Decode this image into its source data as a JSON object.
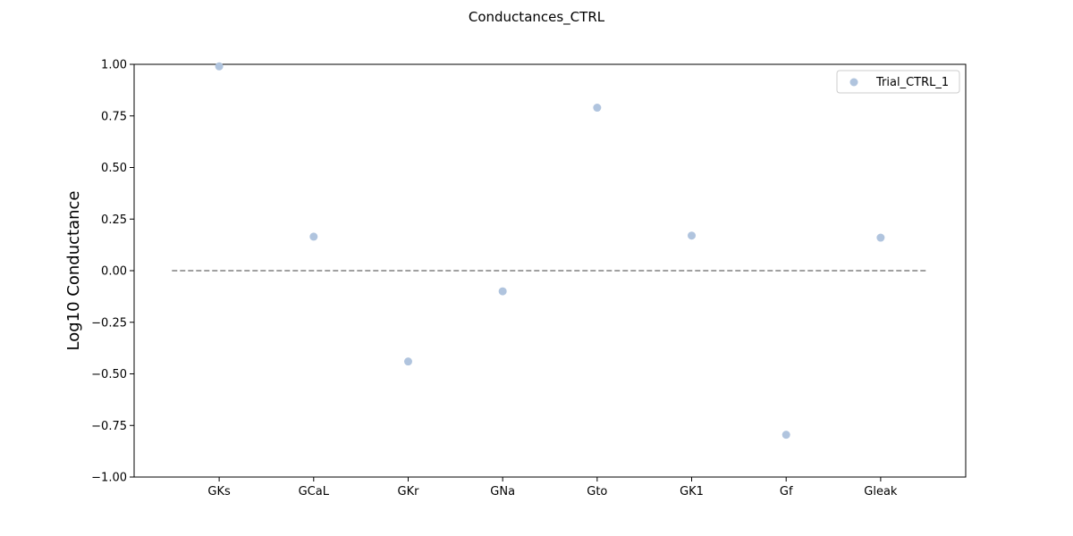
{
  "chart_data": {
    "type": "scatter",
    "title": "Conductances_CTRL",
    "xlabel": "",
    "ylabel": "Log10 Conductance",
    "categories": [
      "GKs",
      "GCaL",
      "GKr",
      "GNa",
      "Gto",
      "GK1",
      "Gf",
      "Gleak"
    ],
    "series": [
      {
        "name": "Trial_CTRL_1",
        "color": "#b0c4de",
        "values": [
          0.99,
          0.165,
          -0.44,
          -0.1,
          0.79,
          0.17,
          -0.795,
          0.16
        ]
      }
    ],
    "reference_line": {
      "y": 0,
      "style": "dashed",
      "color": "#808080"
    },
    "ylim": [
      -1.0,
      1.0
    ],
    "yticks": [
      "−1.00",
      "−0.75",
      "−0.50",
      "−0.25",
      "0.00",
      "0.25",
      "0.50",
      "0.75",
      "1.00"
    ],
    "ytick_values": [
      -1.0,
      -0.75,
      -0.5,
      -0.25,
      0.0,
      0.25,
      0.5,
      0.75,
      1.0
    ],
    "grid": false,
    "legend_position": "top-right"
  }
}
